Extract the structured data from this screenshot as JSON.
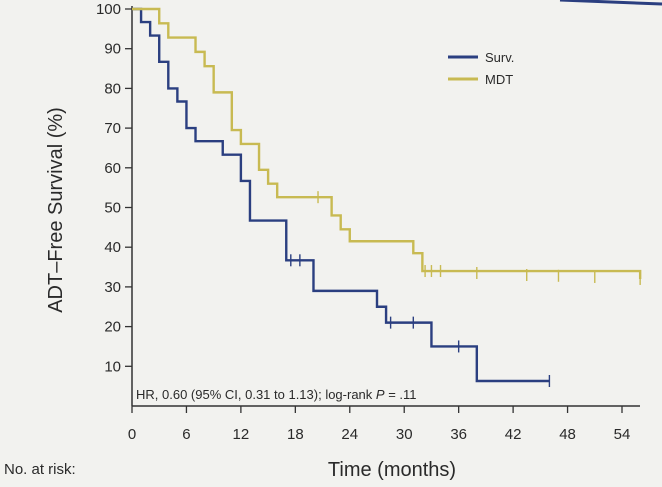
{
  "chart_data": {
    "type": "line",
    "subtype": "kaplan-meier step curve",
    "ylabel": "ADT–Free Survival (%)",
    "xlabel": "Time (months)",
    "xlim": [
      0,
      54
    ],
    "ylim": [
      0,
      100
    ],
    "x_ticks": [
      0,
      6,
      12,
      18,
      24,
      30,
      36,
      42,
      48,
      54
    ],
    "y_ticks": [
      10,
      20,
      30,
      40,
      50,
      60,
      70,
      80,
      90,
      100
    ],
    "grid": false,
    "legend_position": "top-right",
    "annotation": {
      "before": "HR, 0.60 (95% CI, 0.31 to 1.13); log-rank ",
      "italic": "P",
      "after": " = .11"
    },
    "risk_label": "No. at risk:",
    "series": [
      {
        "name": "Surv.",
        "color": "#2b3f80",
        "steps": [
          [
            0,
            100
          ],
          [
            1,
            96.7
          ],
          [
            2,
            93.3
          ],
          [
            3,
            86.7
          ],
          [
            4,
            80
          ],
          [
            5,
            76.7
          ],
          [
            6,
            70
          ],
          [
            7,
            66.7
          ],
          [
            10,
            63.3
          ],
          [
            12,
            56.7
          ],
          [
            13,
            46.7
          ],
          [
            17,
            36.7
          ],
          [
            20,
            29
          ],
          [
            27,
            25
          ],
          [
            28,
            21
          ],
          [
            33,
            15
          ],
          [
            38,
            6.3
          ],
          [
            46,
            6.3
          ]
        ],
        "censored": [
          [
            17.5,
            36.7
          ],
          [
            18.5,
            36.7
          ],
          [
            28.5,
            21
          ],
          [
            31,
            21
          ],
          [
            36,
            15
          ],
          [
            46,
            6.3
          ]
        ]
      },
      {
        "name": "MDT",
        "color": "#c8ba52",
        "steps": [
          [
            0,
            100
          ],
          [
            3,
            96.4
          ],
          [
            4,
            92.8
          ],
          [
            7,
            89.2
          ],
          [
            8,
            85.6
          ],
          [
            9,
            79
          ],
          [
            11,
            69.5
          ],
          [
            12,
            66
          ],
          [
            14,
            59.5
          ],
          [
            15,
            56
          ],
          [
            16,
            52.6
          ],
          [
            22,
            48
          ],
          [
            23,
            44.5
          ],
          [
            24,
            41.5
          ],
          [
            31,
            38.5
          ],
          [
            32,
            34
          ],
          [
            56,
            32
          ]
        ],
        "censored": [
          [
            20.5,
            52.6
          ],
          [
            32.3,
            34
          ],
          [
            33,
            34
          ],
          [
            34,
            34
          ],
          [
            38,
            33.5
          ],
          [
            43.5,
            33
          ],
          [
            47,
            32.8
          ],
          [
            51,
            32.5
          ],
          [
            56,
            32
          ]
        ]
      }
    ]
  }
}
